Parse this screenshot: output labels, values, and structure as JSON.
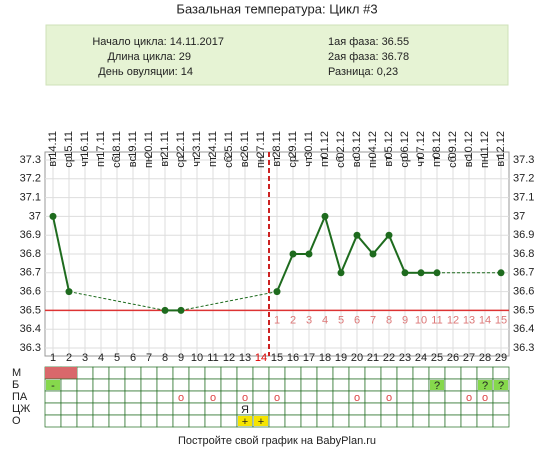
{
  "header": {
    "title": "Базальная температура: Цикл #3",
    "left": [
      "Начало цикла: 14.11.2017",
      "Длина цикла: 29",
      "День овуляции: 14"
    ],
    "right": [
      "1ая фаза: 36.55",
      "2ая фаза: 36.78",
      "Разница: 0,23"
    ]
  },
  "chart_data": {
    "type": "line",
    "categories": [
      "14.11",
      "15.11",
      "16.11",
      "17.11",
      "18.11",
      "19.11",
      "20.11",
      "21.11",
      "22.11",
      "23.11",
      "24.11",
      "25.11",
      "26.11",
      "27.11",
      "28.11",
      "29.11",
      "30.11",
      "01.12",
      "02.12",
      "03.12",
      "04.12",
      "05.12",
      "06.12",
      "07.12",
      "08.12",
      "09.12",
      "10.12",
      "11.12",
      "12.12"
    ],
    "weekdays": [
      "вт",
      "ср",
      "чт",
      "пт",
      "сб",
      "вс",
      "пн",
      "вт",
      "ср",
      "чт",
      "пт",
      "сб",
      "вс",
      "пн",
      "вт",
      "ср",
      "чт",
      "пт",
      "сб",
      "вс",
      "пн",
      "вт",
      "ср",
      "чт",
      "пт",
      "сб",
      "вс",
      "пн",
      "вт"
    ],
    "day_numbers": [
      1,
      2,
      3,
      4,
      5,
      6,
      7,
      8,
      9,
      10,
      11,
      12,
      13,
      14,
      15,
      16,
      17,
      18,
      19,
      20,
      21,
      22,
      23,
      24,
      25,
      26,
      27,
      28,
      29
    ],
    "phase2_days": [
      1,
      2,
      3,
      4,
      5,
      6,
      7,
      8,
      9,
      10,
      11,
      12,
      13,
      14,
      15
    ],
    "series": [
      {
        "color": "#1e6b1e",
        "values": [
          37.0,
          36.6,
          null,
          null,
          null,
          null,
          null,
          36.5,
          36.5,
          null,
          null,
          null,
          null,
          null,
          36.6,
          36.8,
          36.8,
          37.0,
          36.7,
          36.9,
          36.8,
          36.9,
          36.7,
          36.7,
          36.7,
          null,
          null,
          null,
          36.7
        ]
      }
    ],
    "ylim": [
      36.3,
      37.3
    ],
    "yticks": [
      36.3,
      36.4,
      36.5,
      36.6,
      36.7,
      36.8,
      36.9,
      37.0,
      37.1,
      37.2,
      37.3
    ],
    "coverline": 36.5,
    "ovulation_day": 14,
    "grid": true
  },
  "table": {
    "rows": [
      {
        "label": "М",
        "color": "#d9686b",
        "days": [
          1,
          2
        ]
      },
      {
        "label": "Б",
        "color": "#86d84c",
        "cells": {
          "1": "-",
          "25": "?",
          "28": "?",
          "29": "?"
        }
      },
      {
        "label": "ПА",
        "cells": {
          "9": "о",
          "11": "о",
          "13": "о",
          "15": "о",
          "20": "о",
          "22": "о",
          "27": "о",
          "28": "о"
        }
      },
      {
        "label": "ЦЖ",
        "cells": {
          "13": "Я"
        }
      },
      {
        "label": "О",
        "color": "#f5e400",
        "cells": {
          "13": "+",
          "14": "+"
        }
      }
    ]
  },
  "footer": "Постройте свой график на BabyPlan.ru"
}
